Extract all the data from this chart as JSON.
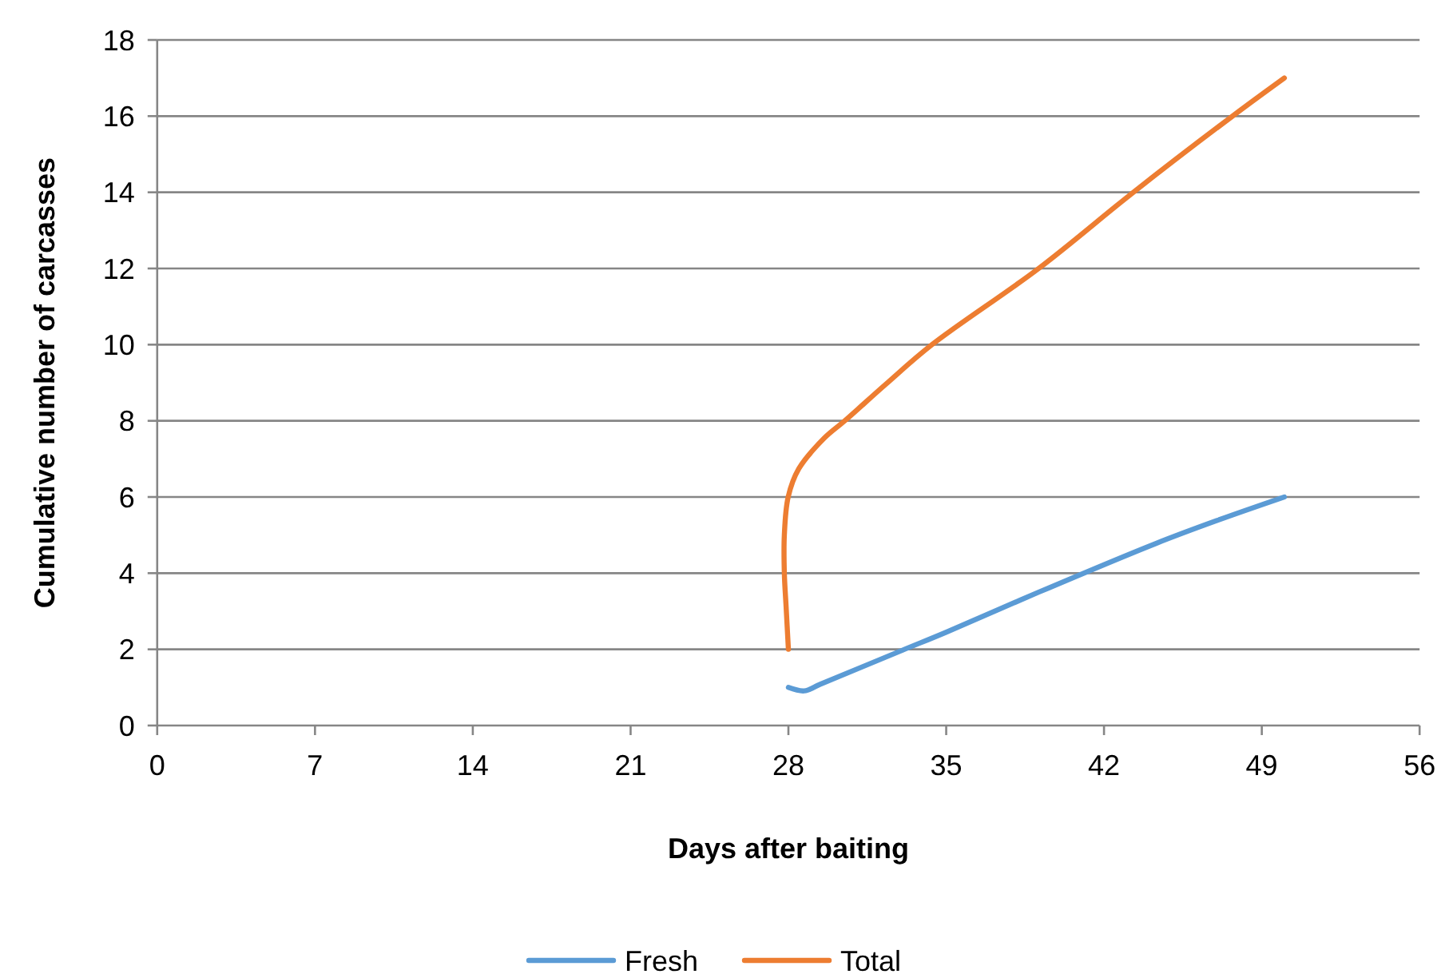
{
  "chart_data": {
    "type": "line",
    "xlabel": "Days after baiting",
    "ylabel": "Cumulative number of carcasses",
    "xlim": [
      0,
      56
    ],
    "xticks": [
      0,
      7,
      14,
      21,
      28,
      35,
      42,
      49,
      56
    ],
    "ylim": [
      0,
      18
    ],
    "yticks": [
      0,
      2,
      4,
      6,
      8,
      10,
      12,
      14,
      16,
      18
    ],
    "grid": "y",
    "legend": "bottom",
    "line_style": "solid",
    "series": [
      {
        "name": "Fresh",
        "color": "#5b9bd5",
        "x": [
          28,
          28.7,
          29.4,
          33.07,
          35,
          39.1,
          44.3,
          47,
          50
        ],
        "values": [
          1,
          0.91,
          1.08,
          1.98,
          2.45,
          3.5,
          4.78,
          5.38,
          6
        ]
      },
      {
        "name": "Total",
        "color": "#ed7d31",
        "x": [
          28,
          27.9,
          27.82,
          27.82,
          27.99,
          28.46,
          29.6,
          30.5,
          32.3,
          34.37,
          39.1,
          43.3,
          47.7,
          50
        ],
        "values": [
          2,
          3.1,
          4,
          5,
          6,
          6.74,
          7.55,
          8,
          8.95,
          10,
          12,
          14,
          16,
          17
        ]
      }
    ]
  }
}
